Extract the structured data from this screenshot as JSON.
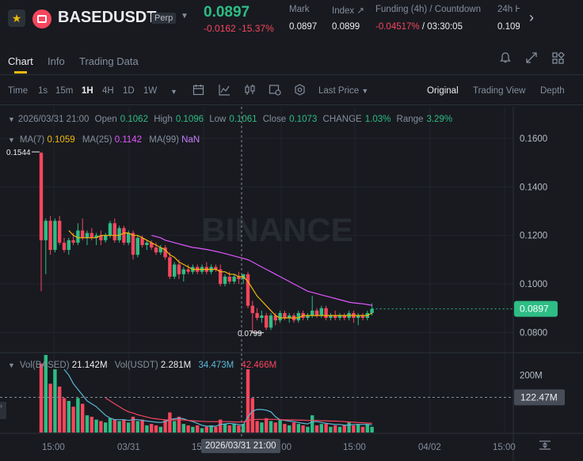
{
  "header": {
    "symbol": "BASEDUSDT",
    "contract_type": "Perp",
    "last_price": "0.0897",
    "change": "-0.0162",
    "change_pct": "-15.37%",
    "stats": [
      {
        "label": "Mark",
        "value": "0.0897"
      },
      {
        "label": "Index ↗",
        "value": "0.0899"
      },
      {
        "label": "Funding (4h) / Countdown",
        "value_a": "-0.04517%",
        "value_b": " / 03:30:05"
      },
      {
        "label": "24h H",
        "value": "0.109"
      }
    ],
    "icons": [
      "star-icon",
      "coin-logo",
      "chevron-down-icon",
      "chevron-right-icon"
    ]
  },
  "tabs": [
    "Chart",
    "Info",
    "Trading Data"
  ],
  "toolbar": {
    "time_label": "Time",
    "intervals": [
      "1s",
      "15m",
      "1H",
      "4H",
      "1D",
      "1W"
    ],
    "active_interval": "1H",
    "price_type": "Last Price",
    "views": [
      "Original",
      "Trading View",
      "Depth"
    ],
    "active_view": "Original"
  },
  "ohlc": {
    "date": "2026/03/31 21:00",
    "open_label": "Open",
    "open": "0.1062",
    "high_label": "High",
    "high": "0.1096",
    "low_label": "Low",
    "low": "0.1061",
    "close_label": "Close",
    "close": "0.1073",
    "change_label": "CHANGE",
    "change": "1.03%",
    "range_label": "Range",
    "range": "3.29%"
  },
  "ma": {
    "ma7_label": "MA(7)",
    "ma7": "0.1059",
    "ma25_label": "MA(25)",
    "ma25": "0.1142",
    "ma99_label": "MA(99)",
    "ma99": "NaN"
  },
  "volume": {
    "vol_based_label": "Vol(BASED)",
    "vol_based": "21.142M",
    "vol_usdt_label": "Vol(USDT)",
    "vol_usdt": "2.281M",
    "ma_a": "34.473M",
    "ma_b": "42.466M"
  },
  "chart_data": {
    "type": "candlestick",
    "price_axis_ticks": [
      "0.1600",
      "0.1400",
      "0.1200",
      "0.1000",
      "0.0800"
    ],
    "ylim": [
      0.072,
      0.173
    ],
    "current_price_tag": "0.0897",
    "high_marker": "0.1544",
    "low_marker": "0.0799",
    "volume_axis_tick": "200M",
    "volume_cursor_tag": "122.47M",
    "volume_ylim": [
      0,
      278
    ],
    "x_tick_labels": [
      "15:00",
      "03/31",
      "15:00",
      "03:00",
      "15:00",
      "04/02",
      "15:00"
    ],
    "crosshair_time": "2026/03/31 21:00",
    "watermark": "BINANCE",
    "colors": {
      "up": "#2ebd85",
      "down": "#f6465d",
      "ma7": "#f0b90b",
      "ma25": "#e056fd",
      "vol_ma_a": "#5ab8d8",
      "vol_ma_b": "#f6465d"
    },
    "candles": [
      {
        "o": 0.154,
        "h": 0.1544,
        "l": 0.097,
        "c": 0.118,
        "v": 240
      },
      {
        "o": 0.118,
        "h": 0.127,
        "l": 0.104,
        "c": 0.126,
        "v": 270
      },
      {
        "o": 0.126,
        "h": 0.128,
        "l": 0.112,
        "c": 0.114,
        "v": 170
      },
      {
        "o": 0.114,
        "h": 0.127,
        "l": 0.113,
        "c": 0.126,
        "v": 220
      },
      {
        "o": 0.126,
        "h": 0.128,
        "l": 0.116,
        "c": 0.117,
        "v": 160
      },
      {
        "o": 0.117,
        "h": 0.119,
        "l": 0.113,
        "c": 0.114,
        "v": 120
      },
      {
        "o": 0.114,
        "h": 0.119,
        "l": 0.112,
        "c": 0.118,
        "v": 110
      },
      {
        "o": 0.118,
        "h": 0.121,
        "l": 0.116,
        "c": 0.117,
        "v": 90
      },
      {
        "o": 0.117,
        "h": 0.125,
        "l": 0.116,
        "c": 0.122,
        "v": 120
      },
      {
        "o": 0.122,
        "h": 0.127,
        "l": 0.118,
        "c": 0.119,
        "v": 100
      },
      {
        "o": 0.119,
        "h": 0.122,
        "l": 0.116,
        "c": 0.121,
        "v": 60
      },
      {
        "o": 0.121,
        "h": 0.123,
        "l": 0.118,
        "c": 0.119,
        "v": 55
      },
      {
        "o": 0.119,
        "h": 0.121,
        "l": 0.116,
        "c": 0.12,
        "v": 45
      },
      {
        "o": 0.12,
        "h": 0.122,
        "l": 0.116,
        "c": 0.118,
        "v": 40
      },
      {
        "o": 0.118,
        "h": 0.121,
        "l": 0.117,
        "c": 0.12,
        "v": 35
      },
      {
        "o": 0.12,
        "h": 0.126,
        "l": 0.119,
        "c": 0.125,
        "v": 50
      },
      {
        "o": 0.125,
        "h": 0.127,
        "l": 0.117,
        "c": 0.118,
        "v": 45
      },
      {
        "o": 0.118,
        "h": 0.124,
        "l": 0.117,
        "c": 0.123,
        "v": 40
      },
      {
        "o": 0.123,
        "h": 0.124,
        "l": 0.116,
        "c": 0.117,
        "v": 45
      },
      {
        "o": 0.117,
        "h": 0.122,
        "l": 0.116,
        "c": 0.121,
        "v": 35
      },
      {
        "o": 0.121,
        "h": 0.122,
        "l": 0.11,
        "c": 0.112,
        "v": 55
      },
      {
        "o": 0.112,
        "h": 0.12,
        "l": 0.111,
        "c": 0.119,
        "v": 40
      },
      {
        "o": 0.119,
        "h": 0.12,
        "l": 0.115,
        "c": 0.116,
        "v": 45
      },
      {
        "o": 0.116,
        "h": 0.118,
        "l": 0.114,
        "c": 0.117,
        "v": 25
      },
      {
        "o": 0.117,
        "h": 0.118,
        "l": 0.114,
        "c": 0.115,
        "v": 30
      },
      {
        "o": 0.115,
        "h": 0.117,
        "l": 0.112,
        "c": 0.113,
        "v": 25
      },
      {
        "o": 0.113,
        "h": 0.116,
        "l": 0.112,
        "c": 0.115,
        "v": 20
      },
      {
        "o": 0.115,
        "h": 0.116,
        "l": 0.11,
        "c": 0.111,
        "v": 45
      },
      {
        "o": 0.111,
        "h": 0.113,
        "l": 0.102,
        "c": 0.103,
        "v": 70
      },
      {
        "o": 0.103,
        "h": 0.109,
        "l": 0.102,
        "c": 0.108,
        "v": 40
      },
      {
        "o": 0.108,
        "h": 0.11,
        "l": 0.102,
        "c": 0.104,
        "v": 55
      },
      {
        "o": 0.104,
        "h": 0.107,
        "l": 0.101,
        "c": 0.106,
        "v": 30
      },
      {
        "o": 0.106,
        "h": 0.108,
        "l": 0.104,
        "c": 0.105,
        "v": 25
      },
      {
        "o": 0.105,
        "h": 0.108,
        "l": 0.104,
        "c": 0.107,
        "v": 20
      },
      {
        "o": 0.107,
        "h": 0.108,
        "l": 0.104,
        "c": 0.105,
        "v": 25
      },
      {
        "o": 0.105,
        "h": 0.108,
        "l": 0.104,
        "c": 0.107,
        "v": 15
      },
      {
        "o": 0.107,
        "h": 0.109,
        "l": 0.104,
        "c": 0.105,
        "v": 20
      },
      {
        "o": 0.105,
        "h": 0.108,
        "l": 0.104,
        "c": 0.107,
        "v": 25
      },
      {
        "o": 0.107,
        "h": 0.108,
        "l": 0.105,
        "c": 0.106,
        "v": 20
      },
      {
        "o": 0.106,
        "h": 0.108,
        "l": 0.099,
        "c": 0.1,
        "v": 45
      },
      {
        "o": 0.1,
        "h": 0.104,
        "l": 0.099,
        "c": 0.103,
        "v": 30
      },
      {
        "o": 0.103,
        "h": 0.105,
        "l": 0.1,
        "c": 0.101,
        "v": 25
      },
      {
        "o": 0.101,
        "h": 0.104,
        "l": 0.1,
        "c": 0.103,
        "v": 30
      },
      {
        "o": 0.103,
        "h": 0.105,
        "l": 0.1,
        "c": 0.102,
        "v": 25
      },
      {
        "o": 0.102,
        "h": 0.104,
        "l": 0.1,
        "c": 0.104,
        "v": 30
      },
      {
        "o": 0.104,
        "h": 0.105,
        "l": 0.09,
        "c": 0.091,
        "v": 220
      },
      {
        "o": 0.091,
        "h": 0.093,
        "l": 0.0799,
        "c": 0.088,
        "v": 120
      },
      {
        "o": 0.088,
        "h": 0.09,
        "l": 0.085,
        "c": 0.086,
        "v": 40
      },
      {
        "o": 0.086,
        "h": 0.089,
        "l": 0.084,
        "c": 0.087,
        "v": 35
      },
      {
        "o": 0.087,
        "h": 0.088,
        "l": 0.081,
        "c": 0.082,
        "v": 50
      },
      {
        "o": 0.082,
        "h": 0.088,
        "l": 0.081,
        "c": 0.087,
        "v": 40
      },
      {
        "o": 0.087,
        "h": 0.088,
        "l": 0.083,
        "c": 0.085,
        "v": 35
      },
      {
        "o": 0.085,
        "h": 0.089,
        "l": 0.084,
        "c": 0.088,
        "v": 45
      },
      {
        "o": 0.088,
        "h": 0.089,
        "l": 0.085,
        "c": 0.086,
        "v": 30
      },
      {
        "o": 0.086,
        "h": 0.088,
        "l": 0.084,
        "c": 0.087,
        "v": 25
      },
      {
        "o": 0.087,
        "h": 0.088,
        "l": 0.084,
        "c": 0.085,
        "v": 35
      },
      {
        "o": 0.085,
        "h": 0.089,
        "l": 0.084,
        "c": 0.088,
        "v": 30
      },
      {
        "o": 0.088,
        "h": 0.089,
        "l": 0.085,
        "c": 0.086,
        "v": 25
      },
      {
        "o": 0.086,
        "h": 0.088,
        "l": 0.085,
        "c": 0.087,
        "v": 20
      },
      {
        "o": 0.087,
        "h": 0.095,
        "l": 0.086,
        "c": 0.089,
        "v": 60
      },
      {
        "o": 0.089,
        "h": 0.09,
        "l": 0.086,
        "c": 0.087,
        "v": 25
      },
      {
        "o": 0.087,
        "h": 0.091,
        "l": 0.086,
        "c": 0.09,
        "v": 30
      },
      {
        "o": 0.09,
        "h": 0.091,
        "l": 0.085,
        "c": 0.086,
        "v": 30
      },
      {
        "o": 0.086,
        "h": 0.088,
        "l": 0.085,
        "c": 0.087,
        "v": 20
      },
      {
        "o": 0.087,
        "h": 0.089,
        "l": 0.085,
        "c": 0.086,
        "v": 25
      },
      {
        "o": 0.086,
        "h": 0.088,
        "l": 0.085,
        "c": 0.087,
        "v": 20
      },
      {
        "o": 0.087,
        "h": 0.088,
        "l": 0.085,
        "c": 0.086,
        "v": 25
      },
      {
        "o": 0.086,
        "h": 0.089,
        "l": 0.085,
        "c": 0.088,
        "v": 35
      },
      {
        "o": 0.088,
        "h": 0.089,
        "l": 0.084,
        "c": 0.086,
        "v": 25
      },
      {
        "o": 0.086,
        "h": 0.088,
        "l": 0.083,
        "c": 0.087,
        "v": 30
      },
      {
        "o": 0.087,
        "h": 0.088,
        "l": 0.085,
        "c": 0.086,
        "v": 20
      },
      {
        "o": 0.086,
        "h": 0.089,
        "l": 0.085,
        "c": 0.088,
        "v": 30
      },
      {
        "o": 0.088,
        "h": 0.092,
        "l": 0.087,
        "c": 0.0897,
        "v": 20
      }
    ],
    "ma7": [
      null,
      null,
      null,
      null,
      null,
      null,
      0.122,
      0.12,
      0.119,
      0.119,
      0.119,
      0.119,
      0.119,
      0.12,
      0.12,
      0.12,
      0.12,
      0.12,
      0.121,
      0.121,
      0.12,
      0.12,
      0.119,
      0.118,
      0.117,
      0.116,
      0.115,
      0.114,
      0.112,
      0.111,
      0.109,
      0.108,
      0.107,
      0.106,
      0.106,
      0.106,
      0.106,
      0.106,
      0.106,
      0.105,
      0.105,
      0.104,
      0.104,
      0.103,
      0.103,
      0.101,
      0.098,
      0.095,
      0.093,
      0.091,
      0.089,
      0.087,
      0.086,
      0.086,
      0.086,
      0.086,
      0.086,
      0.087,
      0.087,
      0.087,
      0.087,
      0.087,
      0.087,
      0.087,
      0.087,
      0.087,
      0.087,
      0.087,
      0.087,
      0.087,
      0.087,
      0.087,
      0.088
    ],
    "ma25": [
      null,
      null,
      null,
      null,
      null,
      null,
      null,
      null,
      null,
      null,
      null,
      null,
      null,
      null,
      null,
      null,
      null,
      null,
      null,
      null,
      null,
      null,
      null,
      null,
      0.12,
      0.1195,
      0.119,
      0.118,
      0.1175,
      0.117,
      0.1165,
      0.116,
      0.1155,
      0.115,
      0.1148,
      0.1145,
      0.1142,
      0.1138,
      0.1134,
      0.113,
      0.1125,
      0.112,
      0.1115,
      0.111,
      0.1105,
      0.11,
      0.109,
      0.108,
      0.107,
      0.106,
      0.105,
      0.104,
      0.103,
      0.102,
      0.101,
      0.1,
      0.099,
      0.098,
      0.097,
      0.0965,
      0.096,
      0.0955,
      0.095,
      0.0945,
      0.094,
      0.0935,
      0.093,
      0.0925,
      0.0922,
      0.092,
      0.0918,
      0.0915,
      0.0912
    ],
    "vol_ma_a": [
      null,
      null,
      null,
      null,
      null,
      220,
      200,
      170,
      150,
      130,
      110,
      100,
      90,
      75,
      60,
      50,
      45,
      45,
      45,
      42,
      45,
      45,
      42,
      40,
      38,
      36,
      35,
      38,
      45,
      48,
      50,
      48,
      42,
      38,
      32,
      25,
      22,
      22,
      22,
      28,
      30,
      32,
      30,
      28,
      26,
      55,
      75,
      80,
      80,
      78,
      72,
      55,
      45,
      42,
      40,
      38,
      35,
      32,
      30,
      38,
      38,
      35,
      32,
      30,
      28,
      28,
      26,
      26,
      28,
      28,
      28,
      28,
      27
    ],
    "vol_ma_b": [
      null,
      null,
      null,
      null,
      null,
      null,
      null,
      null,
      null,
      null,
      null,
      null,
      null,
      null,
      120,
      110,
      100,
      90,
      80,
      72,
      68,
      62,
      58,
      54,
      50,
      48,
      46,
      44,
      44,
      44,
      44,
      44,
      42,
      41,
      40,
      39,
      38,
      38,
      38,
      38,
      38,
      38,
      37,
      37,
      37,
      42,
      45,
      46,
      46,
      46,
      46,
      46,
      45,
      44,
      44,
      44,
      43,
      43,
      42,
      42,
      42,
      41,
      41,
      40,
      40,
      39,
      38,
      37,
      36,
      35,
      34,
      33,
      32
    ]
  }
}
